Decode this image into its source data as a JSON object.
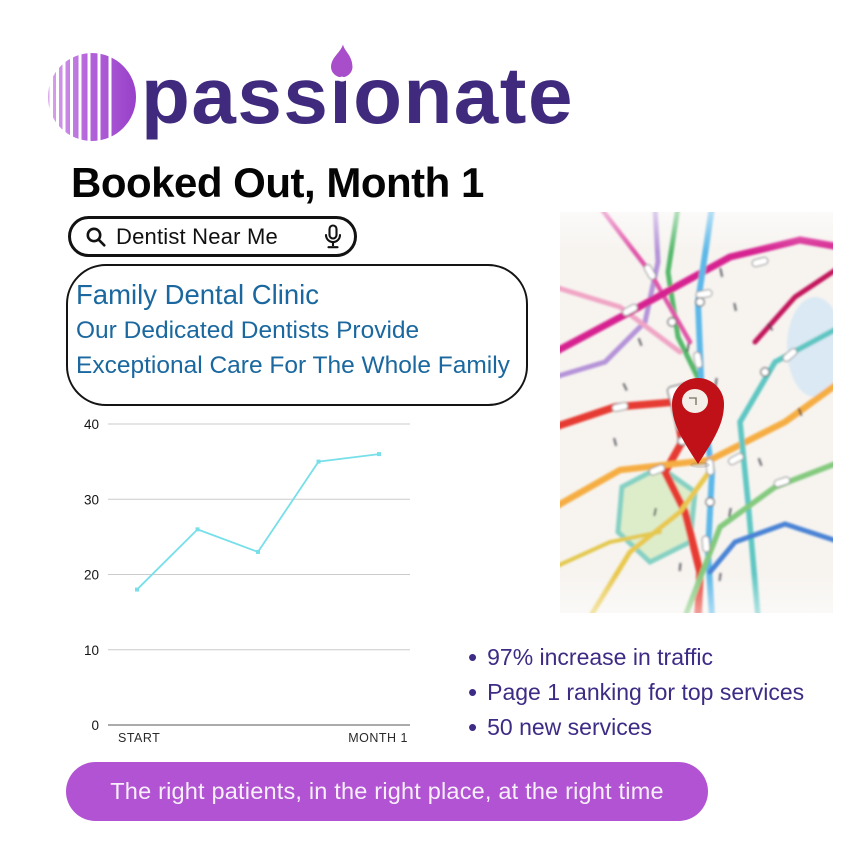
{
  "logo": {
    "brand": "passionate"
  },
  "heading": "Booked Out, Month 1",
  "search": {
    "query": "Dentist Near Me"
  },
  "listing_card": {
    "title": "Family Dental Clinic",
    "description_line1": "Our Dedicated Dentists Provide",
    "description_line2": "Exceptional Care For The Whole Family"
  },
  "chart_data": {
    "type": "line",
    "x_labels": [
      "START",
      "MONTH 1"
    ],
    "values": [
      18,
      26,
      23,
      35,
      36
    ],
    "yticks": [
      0,
      10,
      20,
      30,
      40
    ],
    "ylim": [
      0,
      40
    ],
    "grid": true,
    "legend": "none",
    "line_color": "#76dfe9",
    "marker": "square"
  },
  "bullets": [
    "97% increase in traffic",
    "Page 1 ranking for top services",
    "50 new services"
  ],
  "banner": {
    "text": "The right patients, in the right place, at the right time"
  },
  "colors": {
    "brand_purple": "#3f2a7d",
    "logo_magenta": "#a64fd2",
    "clinic_blue": "#1a689f",
    "chart_line_cyan": "#76dfe9",
    "bullet_purple": "#3d2b85",
    "banner_purple": "#b253d3",
    "pin_red": "#bf1117"
  }
}
